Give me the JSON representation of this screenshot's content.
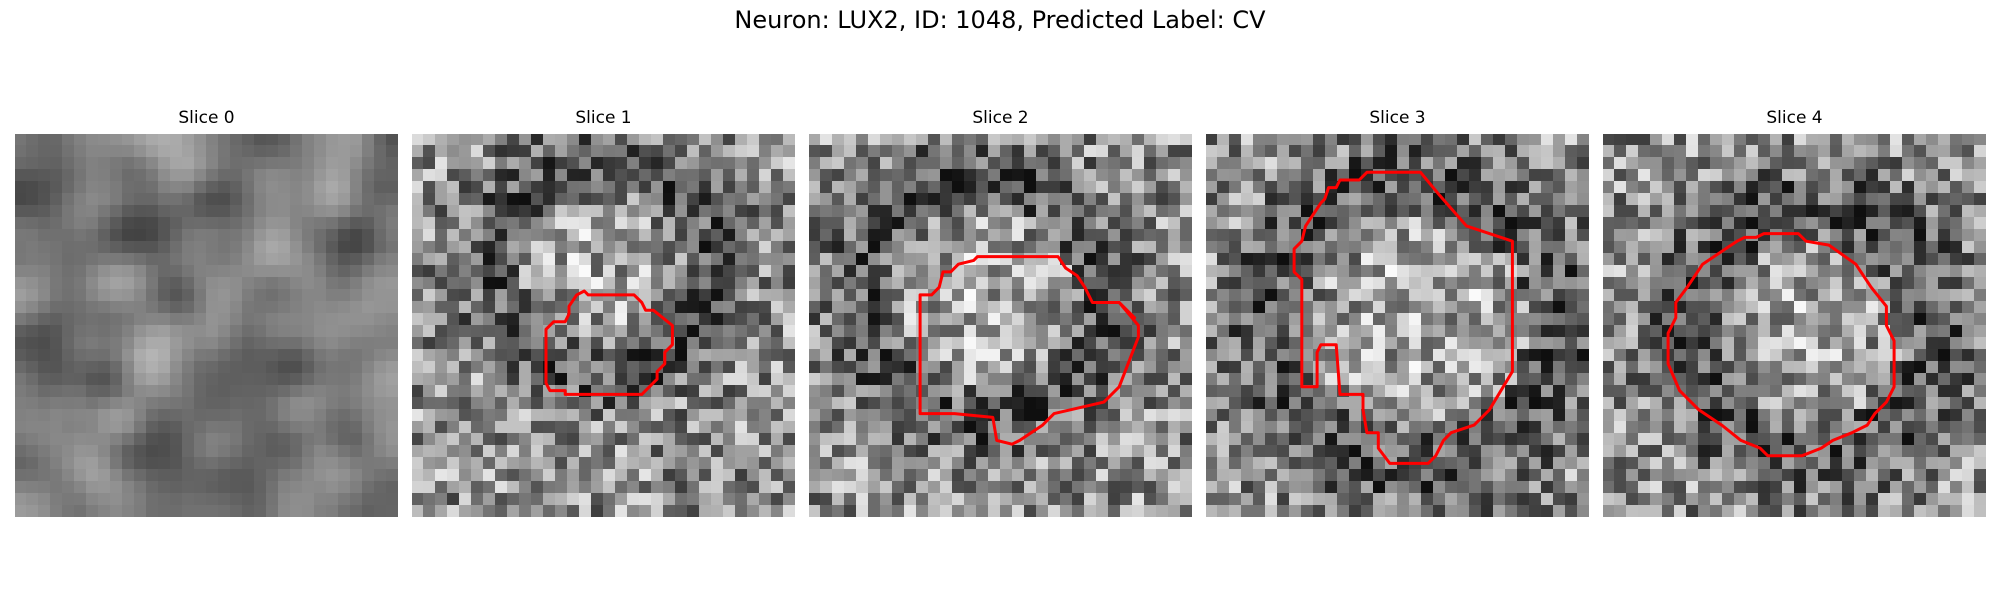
{
  "figure": {
    "suptitle": "Neuron: LUX2, ID: 1048, Predicted Label: CV",
    "outline_color": "#ff0000",
    "panels": [
      {
        "title": "Slice 0",
        "seed": 11,
        "smooth": true,
        "ring": null,
        "contour": null
      },
      {
        "title": "Slice 1",
        "seed": 23,
        "smooth": false,
        "ring": [
          0.5,
          0.35,
          0.28,
          0.1
        ],
        "contour": [
          [
            0.43,
            0.42
          ],
          [
            0.45,
            0.41
          ],
          [
            0.46,
            0.42
          ],
          [
            0.58,
            0.42
          ],
          [
            0.6,
            0.44
          ],
          [
            0.61,
            0.46
          ],
          [
            0.63,
            0.46
          ],
          [
            0.68,
            0.5
          ],
          [
            0.68,
            0.55
          ],
          [
            0.66,
            0.57
          ],
          [
            0.66,
            0.6
          ],
          [
            0.64,
            0.62
          ],
          [
            0.64,
            0.64
          ],
          [
            0.61,
            0.67
          ],
          [
            0.6,
            0.68
          ],
          [
            0.4,
            0.68
          ],
          [
            0.4,
            0.67
          ],
          [
            0.36,
            0.67
          ],
          [
            0.35,
            0.65
          ],
          [
            0.35,
            0.51
          ],
          [
            0.37,
            0.49
          ],
          [
            0.4,
            0.49
          ],
          [
            0.41,
            0.47
          ],
          [
            0.41,
            0.45
          ]
        ]
      },
      {
        "title": "Slice 2",
        "seed": 37,
        "smooth": false,
        "ring": [
          0.45,
          0.43,
          0.32,
          0.1
        ],
        "contour": [
          [
            0.43,
            0.33
          ],
          [
            0.44,
            0.32
          ],
          [
            0.65,
            0.32
          ],
          [
            0.67,
            0.35
          ],
          [
            0.7,
            0.37
          ],
          [
            0.72,
            0.4
          ],
          [
            0.74,
            0.44
          ],
          [
            0.81,
            0.44
          ],
          [
            0.85,
            0.48
          ],
          [
            0.81,
            0.44
          ],
          [
            0.86,
            0.5
          ],
          [
            0.86,
            0.53
          ],
          [
            0.81,
            0.66
          ],
          [
            0.77,
            0.7
          ],
          [
            0.64,
            0.73
          ],
          [
            0.61,
            0.76
          ],
          [
            0.55,
            0.8
          ],
          [
            0.53,
            0.81
          ],
          [
            0.49,
            0.8
          ],
          [
            0.48,
            0.74
          ],
          [
            0.38,
            0.73
          ],
          [
            0.29,
            0.73
          ],
          [
            0.29,
            0.42
          ],
          [
            0.32,
            0.42
          ],
          [
            0.34,
            0.4
          ],
          [
            0.35,
            0.36
          ],
          [
            0.37,
            0.36
          ],
          [
            0.39,
            0.34
          ]
        ]
      },
      {
        "title": "Slice 3",
        "seed": 53,
        "smooth": false,
        "ring": [
          0.55,
          0.5,
          0.38,
          0.12
        ],
        "contour": [
          [
            0.3,
            0.18
          ],
          [
            0.31,
            0.17
          ],
          [
            0.32,
            0.14
          ],
          [
            0.34,
            0.14
          ],
          [
            0.35,
            0.12
          ],
          [
            0.4,
            0.12
          ],
          [
            0.42,
            0.1
          ],
          [
            0.56,
            0.1
          ],
          [
            0.61,
            0.16
          ],
          [
            0.68,
            0.24
          ],
          [
            0.8,
            0.28
          ],
          [
            0.8,
            0.36
          ],
          [
            0.8,
            0.4
          ],
          [
            0.8,
            0.45
          ],
          [
            0.8,
            0.55
          ],
          [
            0.8,
            0.62
          ],
          [
            0.74,
            0.72
          ],
          [
            0.7,
            0.76
          ],
          [
            0.64,
            0.78
          ],
          [
            0.62,
            0.8
          ],
          [
            0.6,
            0.84
          ],
          [
            0.58,
            0.86
          ],
          [
            0.48,
            0.86
          ],
          [
            0.45,
            0.82
          ],
          [
            0.45,
            0.78
          ],
          [
            0.42,
            0.78
          ],
          [
            0.41,
            0.72
          ],
          [
            0.41,
            0.68
          ],
          [
            0.35,
            0.68
          ],
          [
            0.34,
            0.55
          ],
          [
            0.3,
            0.55
          ],
          [
            0.29,
            0.57
          ],
          [
            0.29,
            0.66
          ],
          [
            0.25,
            0.66
          ],
          [
            0.25,
            0.38
          ],
          [
            0.23,
            0.36
          ],
          [
            0.23,
            0.3
          ],
          [
            0.25,
            0.28
          ],
          [
            0.26,
            0.24
          ]
        ]
      },
      {
        "title": "Slice 4",
        "seed": 71,
        "smooth": false,
        "ring": [
          0.55,
          0.52,
          0.32,
          0.12
        ],
        "contour": [
          [
            0.35,
            0.28
          ],
          [
            0.37,
            0.27
          ],
          [
            0.4,
            0.27
          ],
          [
            0.42,
            0.26
          ],
          [
            0.51,
            0.26
          ],
          [
            0.53,
            0.28
          ],
          [
            0.59,
            0.29
          ],
          [
            0.66,
            0.34
          ],
          [
            0.7,
            0.4
          ],
          [
            0.74,
            0.45
          ],
          [
            0.74,
            0.5
          ],
          [
            0.76,
            0.54
          ],
          [
            0.76,
            0.66
          ],
          [
            0.74,
            0.7
          ],
          [
            0.71,
            0.73
          ],
          [
            0.69,
            0.76
          ],
          [
            0.65,
            0.78
          ],
          [
            0.6,
            0.8
          ],
          [
            0.57,
            0.82
          ],
          [
            0.52,
            0.84
          ],
          [
            0.43,
            0.84
          ],
          [
            0.41,
            0.82
          ],
          [
            0.36,
            0.8
          ],
          [
            0.31,
            0.76
          ],
          [
            0.25,
            0.72
          ],
          [
            0.2,
            0.67
          ],
          [
            0.17,
            0.6
          ],
          [
            0.17,
            0.52
          ],
          [
            0.19,
            0.48
          ],
          [
            0.19,
            0.44
          ],
          [
            0.22,
            0.4
          ],
          [
            0.26,
            0.34
          ]
        ]
      }
    ]
  }
}
